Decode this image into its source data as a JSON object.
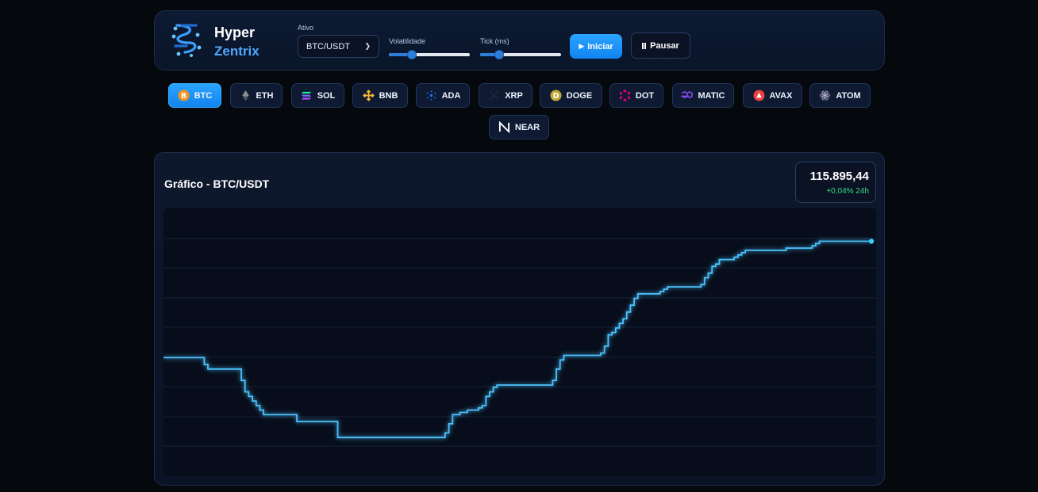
{
  "brand": {
    "line1": "Hyper",
    "line2": "Zentrix",
    "logo_icon": "dna-logo-icon"
  },
  "controls": {
    "asset_label": "Ativo",
    "asset_value": "BTC/USDT",
    "volatility_label": "Volatilidade",
    "volatility_level": 0.25,
    "tick_label": "Tick (ms)",
    "tick_level": 0.2,
    "start_label": "Iniciar",
    "pause_label": "Pausar"
  },
  "assets": [
    {
      "label": "BTC",
      "icon": "bitcoin-icon",
      "color": "#f7931a",
      "active": true
    },
    {
      "label": "ETH",
      "icon": "ethereum-icon",
      "color": "#8c8c8c",
      "active": false
    },
    {
      "label": "SOL",
      "icon": "solana-icon",
      "color": "#14f195",
      "active": false
    },
    {
      "label": "BNB",
      "icon": "bnb-icon",
      "color": "#f3ba2f",
      "active": false
    },
    {
      "label": "ADA",
      "icon": "cardano-icon",
      "color": "#0033ad",
      "active": false
    },
    {
      "label": "XRP",
      "icon": "xrp-icon",
      "color": "#23292f",
      "active": false
    },
    {
      "label": "DOGE",
      "icon": "doge-icon",
      "color": "#c2a633",
      "active": false
    },
    {
      "label": "DOT",
      "icon": "polkadot-icon",
      "color": "#e6007a",
      "active": false
    },
    {
      "label": "MATIC",
      "icon": "polygon-icon",
      "color": "#8247e5",
      "active": false
    },
    {
      "label": "AVAX",
      "icon": "avalanche-icon",
      "color": "#e84142",
      "active": false
    },
    {
      "label": "ATOM",
      "icon": "cosmos-icon",
      "color": "#6f7390",
      "active": false
    },
    {
      "label": "NEAR",
      "icon": "near-icon",
      "color": "#ffffff",
      "active": false
    }
  ],
  "chart": {
    "title": "Gráfico - BTC/USDT",
    "price": "115.895,44",
    "change": "+0,04% 24h",
    "line_color": "#4cc3ff"
  },
  "chart_data": {
    "type": "line",
    "series": [
      {
        "values": [
          0.45,
          0.45,
          0.45,
          0.45,
          0.45,
          0.45,
          0.45,
          0.45,
          0.45,
          0.45,
          0.45,
          0.42,
          0.4,
          0.4,
          0.4,
          0.4,
          0.4,
          0.4,
          0.4,
          0.4,
          0.4,
          0.35,
          0.3,
          0.28,
          0.26,
          0.24,
          0.22,
          0.2,
          0.2,
          0.2,
          0.2,
          0.2,
          0.2,
          0.2,
          0.2,
          0.2,
          0.17,
          0.17,
          0.17,
          0.17,
          0.17,
          0.17,
          0.17,
          0.17,
          0.17,
          0.17,
          0.17,
          0.1,
          0.1,
          0.1,
          0.1,
          0.1,
          0.1,
          0.1,
          0.1,
          0.1,
          0.1,
          0.1,
          0.1,
          0.1,
          0.1,
          0.1,
          0.1,
          0.1,
          0.1,
          0.1,
          0.1,
          0.1,
          0.1,
          0.1,
          0.1,
          0.1,
          0.1,
          0.1,
          0.1,
          0.1,
          0.12,
          0.16,
          0.2,
          0.2,
          0.21,
          0.21,
          0.22,
          0.22,
          0.22,
          0.23,
          0.24,
          0.28,
          0.3,
          0.32,
          0.33,
          0.33,
          0.33,
          0.33,
          0.33,
          0.33,
          0.33,
          0.33,
          0.33,
          0.33,
          0.33,
          0.33,
          0.33,
          0.33,
          0.33,
          0.35,
          0.4,
          0.44,
          0.46,
          0.46,
          0.46,
          0.46,
          0.46,
          0.46,
          0.46,
          0.46,
          0.46,
          0.46,
          0.47,
          0.5,
          0.55,
          0.56,
          0.58,
          0.6,
          0.62,
          0.65,
          0.68,
          0.71,
          0.73,
          0.73,
          0.73,
          0.73,
          0.73,
          0.73,
          0.74,
          0.75,
          0.76,
          0.76,
          0.76,
          0.76,
          0.76,
          0.76,
          0.76,
          0.76,
          0.76,
          0.77,
          0.8,
          0.82,
          0.85,
          0.86,
          0.88,
          0.88,
          0.88,
          0.88,
          0.89,
          0.9,
          0.91,
          0.92,
          0.92,
          0.92,
          0.92,
          0.92,
          0.92,
          0.92,
          0.92,
          0.92,
          0.92,
          0.92,
          0.93,
          0.93,
          0.93,
          0.93,
          0.93,
          0.93,
          0.93,
          0.94,
          0.95,
          0.96,
          0.96,
          0.96,
          0.96,
          0.96,
          0.96,
          0.96,
          0.96,
          0.96,
          0.96,
          0.96,
          0.96,
          0.96,
          0.96,
          0.96
        ]
      }
    ],
    "grid": true,
    "end_marker": true
  }
}
